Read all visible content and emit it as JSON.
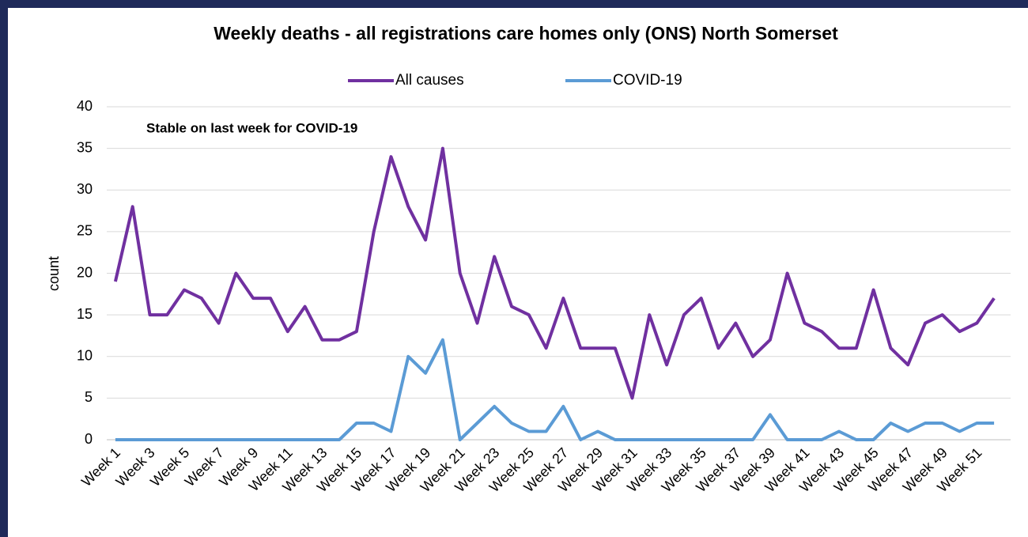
{
  "chart_data": {
    "type": "line",
    "title": "Weekly deaths - all registrations care homes only (ONS) North Somerset",
    "annotation": "Stable on last week for COVID-19",
    "y_label": "count",
    "categories": [
      "Week 1",
      null,
      "Week 3",
      null,
      "Week 5",
      null,
      "Week 7",
      null,
      "Week 9",
      null,
      "Week 11",
      null,
      "Week 13",
      null,
      "Week 15",
      null,
      "Week 17",
      null,
      "Week 19",
      null,
      "Week 21",
      null,
      "Week 23",
      null,
      "Week 25",
      null,
      "Week 27",
      null,
      "Week 29",
      null,
      "Week 31",
      null,
      "Week 33",
      null,
      "Week 35",
      null,
      "Week 37",
      null,
      "Week 39",
      null,
      "Week 41",
      null,
      "Week 43",
      null,
      "Week 45",
      null,
      "Week 47",
      null,
      "Week 49",
      null,
      "Week 51",
      null
    ],
    "series": [
      {
        "name": "All causes",
        "color": "#7030a0",
        "values": [
          19,
          28,
          15,
          15,
          18,
          17,
          14,
          20,
          17,
          17,
          13,
          16,
          12,
          12,
          13,
          25,
          34,
          28,
          24,
          35,
          20,
          14,
          22,
          16,
          15,
          11,
          17,
          11,
          11,
          11,
          5,
          15,
          9,
          15,
          17,
          11,
          14,
          10,
          12,
          20,
          14,
          13,
          11,
          11,
          18,
          11,
          9,
          14,
          15,
          13,
          14,
          17
        ]
      },
      {
        "name": "COVID-19",
        "color": "#5b9bd5",
        "values": [
          0,
          0,
          0,
          0,
          0,
          0,
          0,
          0,
          0,
          0,
          0,
          0,
          0,
          0,
          2,
          2,
          1,
          10,
          8,
          12,
          0,
          2,
          4,
          2,
          1,
          1,
          4,
          0,
          1,
          0,
          0,
          0,
          0,
          0,
          0,
          0,
          0,
          0,
          3,
          0,
          0,
          0,
          1,
          0,
          0,
          2,
          1,
          2,
          2,
          1,
          2,
          2
        ]
      }
    ],
    "ylim": [
      0,
      40
    ],
    "yticks": [
      0,
      5,
      10,
      15,
      20,
      25,
      30,
      35,
      40
    ],
    "grid": true,
    "legend": "top"
  }
}
